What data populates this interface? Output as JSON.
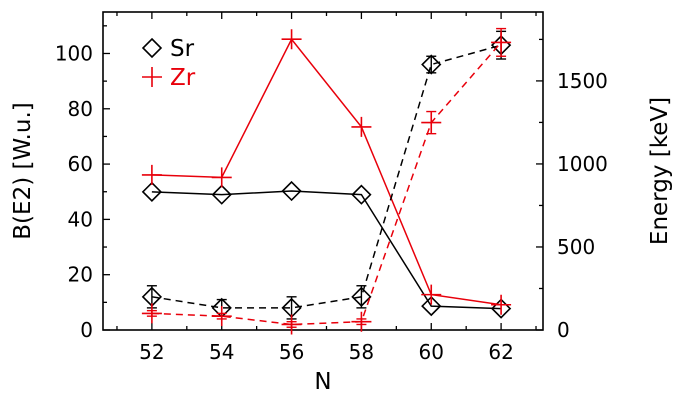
{
  "chart_data": {
    "type": "line",
    "xlabel": "N",
    "ylabel_left": "B(E2) [W.u.]",
    "ylabel_right": "Energy [keV]",
    "x_ticks": [
      52,
      54,
      56,
      58,
      60,
      62
    ],
    "xlim": [
      50.6,
      63.2
    ],
    "ylim_left": [
      0,
      115
    ],
    "ylim_right": [
      0,
      1915
    ],
    "y_ticks_left": [
      0,
      20,
      40,
      60,
      80,
      100
    ],
    "y_ticks_right": [
      0,
      500,
      1000,
      1500
    ],
    "legend": [
      {
        "label": "Sr",
        "color": "#000000",
        "marker": "diamond"
      },
      {
        "label": "Zr",
        "color": "#e8000b",
        "marker": "plus"
      }
    ],
    "series": [
      {
        "name": "Sr",
        "quantity": "energy",
        "axis": "right",
        "style": "solid",
        "color": "#000000",
        "marker": "diamond",
        "x": [
          52,
          54,
          56,
          58,
          60,
          62
        ],
        "y": [
          832,
          815,
          837,
          815,
          144,
          129
        ]
      },
      {
        "name": "Zr",
        "quantity": "energy",
        "axis": "right",
        "style": "solid",
        "color": "#e8000b",
        "marker": "plus",
        "x": [
          52,
          54,
          56,
          58,
          60,
          62
        ],
        "y": [
          934,
          919,
          1751,
          1223,
          213,
          152
        ]
      },
      {
        "name": "Sr",
        "quantity": "B(E2)",
        "axis": "left",
        "style": "dashed",
        "color": "#000000",
        "marker": "diamond",
        "x": [
          52,
          54,
          56,
          58,
          60,
          62
        ],
        "y": [
          12,
          8,
          8,
          12,
          96,
          103
        ],
        "err": [
          4,
          3,
          4,
          4,
          3,
          5
        ]
      },
      {
        "name": "Zr",
        "quantity": "B(E2)",
        "axis": "left",
        "style": "dashed",
        "color": "#e8000b",
        "marker": "plus",
        "x": [
          52,
          54,
          56,
          58,
          60,
          62
        ],
        "y": [
          6,
          5,
          2,
          3,
          75,
          104
        ],
        "err": [
          1,
          1,
          1,
          1,
          4,
          5
        ]
      }
    ]
  }
}
